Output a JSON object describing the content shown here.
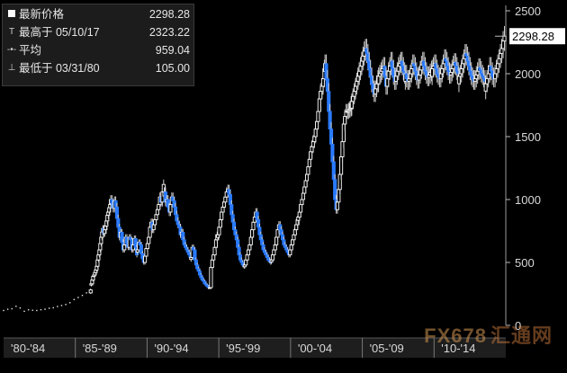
{
  "legend": [
    {
      "symbol": "square",
      "label": "最新价格",
      "value": "2298.28"
    },
    {
      "symbol": "T",
      "label": "最高于 05/10/17",
      "value": "2323.22"
    },
    {
      "symbol": "-•-",
      "label": "平均",
      "value": "959.04"
    },
    {
      "symbol": "⊥",
      "label": "最低于 03/31/80",
      "value": "105.00"
    }
  ],
  "last_price_tag": "2298.28",
  "watermark": {
    "brand": "FX678",
    "cn": "汇通网"
  },
  "chart_data": {
    "type": "candlestick",
    "x_labels": [
      "'80-'84",
      "'85-'89",
      "'90-'94",
      "'95-'99",
      "'00-'04",
      "'05-'09",
      "'10-'14"
    ],
    "y_ticks": [
      0,
      500,
      1000,
      1500,
      2000,
      2500
    ],
    "ylim": [
      0,
      2500
    ],
    "xlim": [
      1980,
      2017.5
    ],
    "legend_position": "top-left",
    "grid": false,
    "last_price": 2298.28,
    "high": {
      "date": "05/10/17",
      "value": 2323.22
    },
    "low": {
      "date": "03/31/80",
      "value": 105.0
    },
    "average": 959.04,
    "up_color": "#ffffff",
    "down_color": "#2a7bff",
    "series": [
      [
        1980.0,
        1986.5,
        118,
        128,
        132,
        152,
        138,
        112,
        124,
        120,
        118,
        124,
        128,
        136,
        140,
        150,
        158,
        166,
        180,
        205,
        222,
        238,
        258,
        282
      ],
      [
        1986.55,
        1987.95,
        330,
        360,
        390,
        400,
        420,
        440,
        470,
        520,
        560,
        600,
        650,
        700,
        742,
        770,
        730,
        760,
        790,
        830,
        875,
        900,
        935,
        960
      ],
      [
        1988.0,
        1989.95,
        1000,
        972,
        930,
        990,
        940,
        850,
        780,
        700,
        740,
        660,
        600,
        640,
        700,
        650,
        620,
        700,
        680,
        600,
        640,
        690,
        620,
        560
      ],
      [
        1990.0,
        1991.95,
        600,
        660,
        640,
        570,
        530,
        500,
        550,
        610,
        650,
        700,
        780,
        820,
        760,
        800,
        840,
        880,
        920,
        960,
        1020,
        980,
        1060,
        1120
      ],
      [
        1992.0,
        1993.95,
        1060,
        980,
        1000,
        940,
        900,
        960,
        1020,
        990,
        940,
        880,
        830,
        800,
        780,
        720,
        740,
        680,
        640,
        620,
        600,
        580,
        560,
        540
      ],
      [
        1994.0,
        1995.95,
        540,
        620,
        600,
        520,
        480,
        450,
        430,
        400,
        380,
        360,
        350,
        330,
        320,
        310,
        300,
        300,
        460,
        520,
        560,
        620,
        680,
        720
      ],
      [
        1996.0,
        1997.95,
        720,
        780,
        840,
        900,
        940,
        980,
        1020,
        1060,
        1080,
        1040,
        960,
        880,
        820,
        760,
        720,
        680,
        620,
        560,
        520,
        500,
        480,
        470
      ],
      [
        1998.0,
        1999.95,
        480,
        520,
        560,
        600,
        640,
        700,
        760,
        820,
        860,
        900,
        840,
        780,
        720,
        680,
        640,
        600,
        580,
        560,
        540,
        520,
        510,
        500
      ],
      [
        2000.0,
        2001.95,
        520,
        560,
        600,
        640,
        700,
        760,
        800,
        760,
        720,
        680,
        640,
        620,
        600,
        580,
        560,
        600,
        640,
        680,
        720,
        760,
        800,
        840
      ],
      [
        2002.0,
        2003.95,
        860,
        900,
        960,
        1000,
        1050,
        1100,
        1150,
        1200,
        1260,
        1320,
        1380,
        1420,
        1460,
        1500,
        1560,
        1620,
        1700,
        1800,
        1860,
        1900,
        1960,
        2040
      ],
      [
        2004.0,
        2005.95,
        2080,
        1960,
        1860,
        1700,
        1560,
        1440,
        1300,
        1160,
        1000,
        920,
        980,
        1080,
        1200,
        1340,
        1460,
        1600,
        1660,
        1700,
        1700,
        1710,
        1720,
        1760
      ],
      [
        2006.0,
        2007.95,
        1780,
        1820,
        1860,
        1900,
        1940,
        1980,
        2020,
        2060,
        2100,
        2140,
        2180,
        2200,
        2160,
        2100,
        2040,
        1980,
        1920,
        1880,
        1840,
        1880,
        1920,
        1960
      ],
      [
        2008.0,
        2009.95,
        1980,
        2000,
        2020,
        2040,
        2060,
        1980,
        1900,
        1960,
        2020,
        2060,
        2100,
        2040,
        1980,
        1940,
        1980,
        2020,
        2060,
        2080,
        2100,
        2060,
        2020,
        1990
      ],
      [
        2010.0,
        2011.95,
        2000,
        1960,
        1940,
        1960,
        2000,
        2040,
        2080,
        2060,
        2020,
        1980,
        1950,
        1990,
        2030,
        2070,
        2100,
        2060,
        2020,
        1990,
        1970,
        1990,
        2010,
        2030
      ],
      [
        2012.0,
        2013.95,
        2040,
        2060,
        2080,
        2040,
        2000,
        1980,
        1960,
        2000,
        2040,
        2080,
        2120,
        2100,
        2060,
        2020,
        1990,
        2010,
        2040,
        2070,
        2090,
        2060,
        2020,
        2000
      ],
      [
        2014.0,
        2015.95,
        1980,
        2000,
        2040,
        2080,
        2120,
        2160,
        2140,
        2100,
        2060,
        2020,
        1980,
        1960,
        1940,
        1960,
        1990,
        2020,
        2050,
        2030,
        2000,
        1980,
        1960,
        1940
      ],
      [
        2016.0,
        2017.4,
        1920,
        1960,
        2000,
        2060,
        2020,
        1980,
        1960,
        2000,
        2040,
        2080,
        2120,
        2160,
        2200,
        2260,
        2298.28
      ]
    ]
  }
}
